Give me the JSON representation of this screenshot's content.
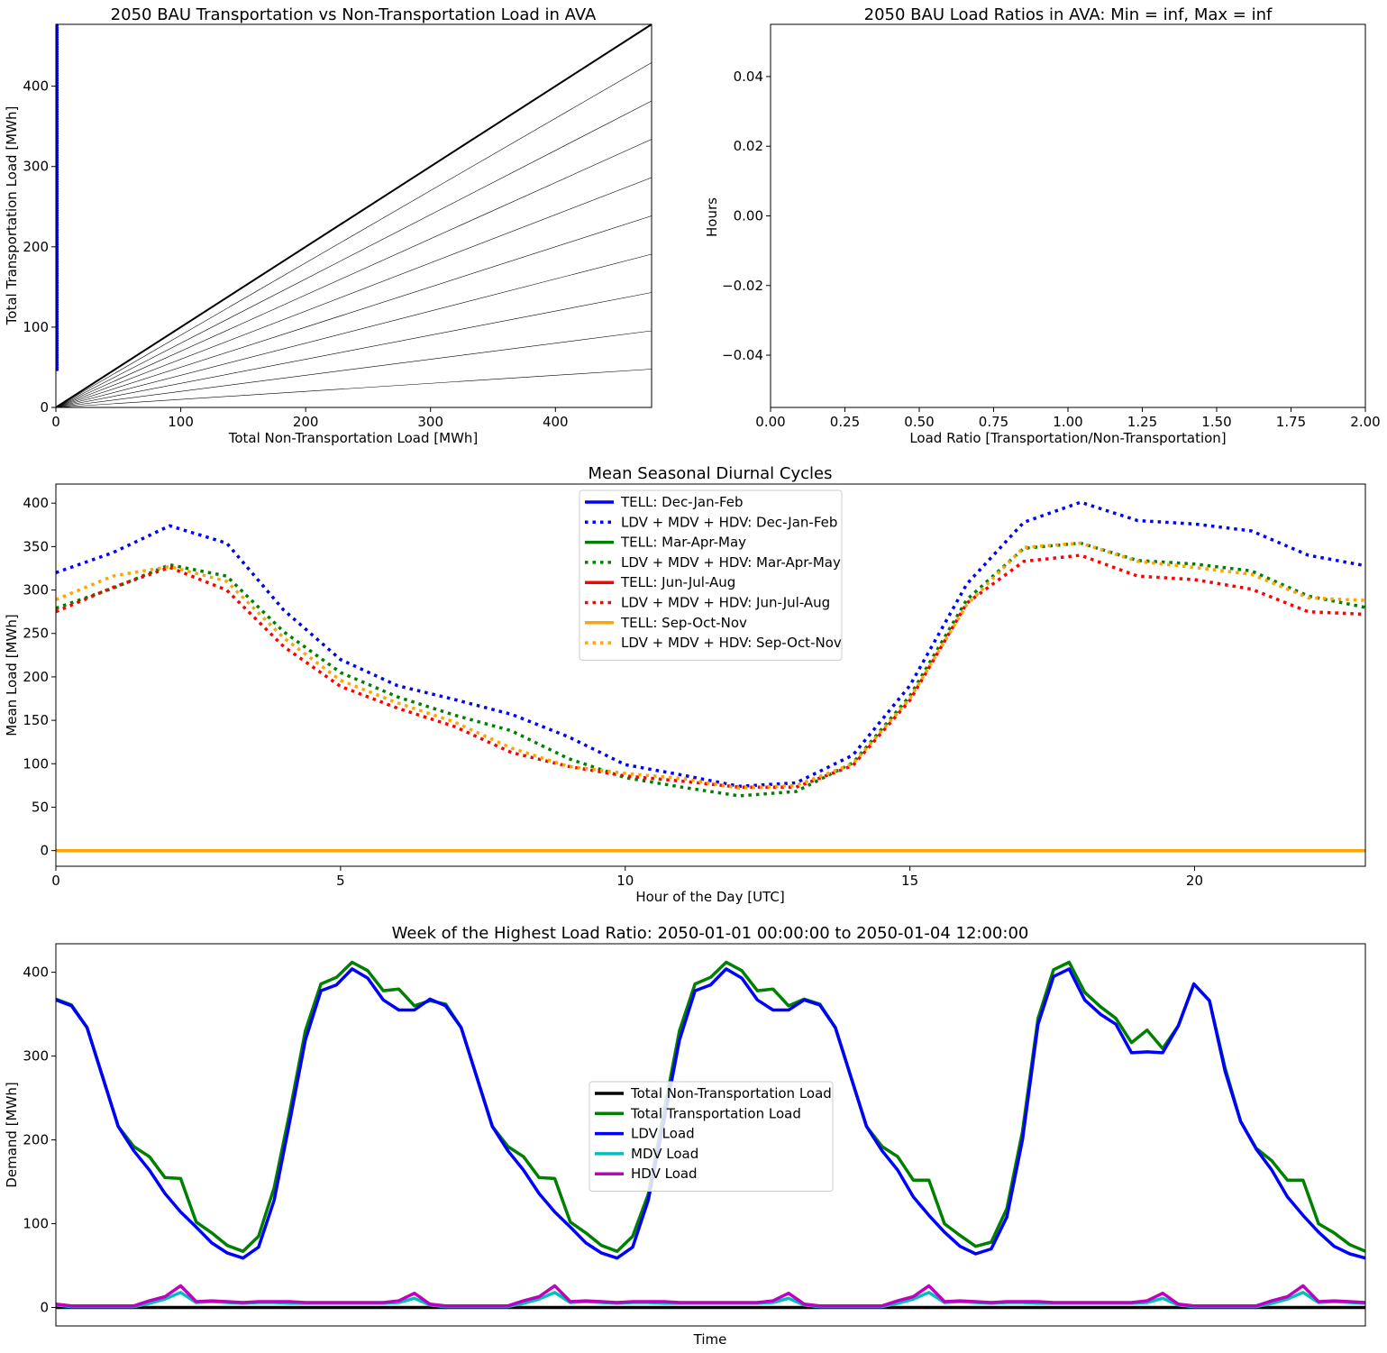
{
  "chart_data": [
    {
      "type": "scatter",
      "title": "2050 BAU Transportation vs Non-Transportation Load in AVA",
      "xlabel": "Total Non-Transportation Load [MWh]",
      "ylabel": "Total Transportation Load [MWh]",
      "xlim": [
        0,
        477
      ],
      "ylim": [
        0,
        477
      ],
      "xticks": [
        0,
        100,
        200,
        300,
        400
      ],
      "yticks": [
        0,
        100,
        200,
        300,
        400
      ],
      "scatter_color": "#0000ff",
      "scatter_x": 0,
      "scatter_y_range": [
        47,
        477
      ],
      "reference_line_slopes": [
        1.0,
        0.9,
        0.8,
        0.7,
        0.6,
        0.5,
        0.4,
        0.3,
        0.2,
        0.1
      ],
      "grid": false
    },
    {
      "type": "bar",
      "title": "2050 BAU Load Ratios in AVA: Min = inf, Max = inf",
      "xlabel": "Load Ratio [Transportation/Non-Transportation]",
      "ylabel": "Hours",
      "xlim": [
        0,
        2
      ],
      "ylim": [
        -0.055,
        0.055
      ],
      "xticks": [
        "0.00",
        "0.25",
        "0.50",
        "0.75",
        "1.00",
        "1.25",
        "1.50",
        "1.75",
        "2.00"
      ],
      "yticks": [
        "0.04",
        "0.02",
        "0.00",
        "−0.02",
        "−0.04"
      ],
      "values": [],
      "grid": false
    },
    {
      "type": "line",
      "title": "Mean Seasonal Diurnal Cycles",
      "xlabel": "Hour of the Day [UTC]",
      "ylabel": "Mean Load [MWh]",
      "xlim": [
        0,
        23
      ],
      "ylim": [
        -18,
        422
      ],
      "xticks": [
        0,
        5,
        10,
        15,
        20
      ],
      "yticks": [
        0,
        50,
        100,
        150,
        200,
        250,
        300,
        350,
        400
      ],
      "legend_position": "upper-center",
      "x": [
        0,
        1,
        2,
        3,
        4,
        5,
        6,
        7,
        8,
        9,
        10,
        11,
        12,
        13,
        14,
        15,
        16,
        17,
        18,
        19,
        20,
        21,
        22,
        23
      ],
      "series": [
        {
          "name": "TELL: Dec-Jan-Feb",
          "color": "#0000ff",
          "dash": "solid",
          "values": [
            0,
            0,
            0,
            0,
            0,
            0,
            0,
            0,
            0,
            0,
            0,
            0,
            0,
            0,
            0,
            0,
            0,
            0,
            0,
            0,
            0,
            0,
            0,
            0
          ]
        },
        {
          "name": "LDV + MDV + HDV: Dec-Jan-Feb",
          "color": "#0000ff",
          "dash": "dotted",
          "values": [
            320,
            343,
            374,
            354,
            277,
            220,
            190,
            174,
            157,
            131,
            99,
            87,
            74,
            78,
            110,
            190,
            307,
            378,
            401,
            380,
            376,
            368,
            340,
            328
          ]
        },
        {
          "name": "TELL: Mar-Apr-May",
          "color": "#008000",
          "dash": "solid",
          "values": [
            0,
            0,
            0,
            0,
            0,
            0,
            0,
            0,
            0,
            0,
            0,
            0,
            0,
            0,
            0,
            0,
            0,
            0,
            0,
            0,
            0,
            0,
            0,
            0
          ]
        },
        {
          "name": "LDV + MDV + HDV: Mar-Apr-May",
          "color": "#008000",
          "dash": "dotted",
          "values": [
            279,
            302,
            329,
            316,
            252,
            205,
            177,
            156,
            138,
            106,
            84,
            73,
            63,
            68,
            101,
            178,
            289,
            348,
            354,
            334,
            330,
            322,
            293,
            280
          ]
        },
        {
          "name": "TELL: Jun-Jul-Aug",
          "color": "#ff0000",
          "dash": "solid",
          "values": [
            0,
            0,
            0,
            0,
            0,
            0,
            0,
            0,
            0,
            0,
            0,
            0,
            0,
            0,
            0,
            0,
            0,
            0,
            0,
            0,
            0,
            0,
            0,
            0
          ]
        },
        {
          "name": "LDV + MDV + HDV: Jun-Jul-Aug",
          "color": "#ff0000",
          "dash": "dotted",
          "values": [
            275,
            303,
            326,
            300,
            235,
            189,
            164,
            143,
            113,
            97,
            86,
            80,
            73,
            73,
            98,
            173,
            285,
            333,
            340,
            316,
            312,
            301,
            275,
            272
          ]
        },
        {
          "name": "TELL: Sep-Oct-Nov",
          "color": "#ffa500",
          "dash": "solid",
          "values": [
            0,
            0,
            0,
            0,
            0,
            0,
            0,
            0,
            0,
            0,
            0,
            0,
            0,
            0,
            0,
            0,
            0,
            0,
            0,
            0,
            0,
            0,
            0,
            0
          ]
        },
        {
          "name": "LDV + MDV + HDV: Sep-Oct-Nov",
          "color": "#ffa500",
          "dash": "dotted",
          "values": [
            289,
            316,
            327,
            310,
            245,
            196,
            170,
            148,
            118,
            97,
            89,
            83,
            72,
            75,
            100,
            175,
            283,
            349,
            354,
            333,
            326,
            318,
            291,
            288
          ]
        }
      ],
      "grid": false
    },
    {
      "type": "line",
      "title": "Week of the Highest Load Ratio: 2050-01-01 00:00:00 to 2050-01-04 12:00:00",
      "xlabel": "Time",
      "ylabel": "Demand [MWh]",
      "xlim": [
        0,
        84
      ],
      "ylim": [
        -22,
        434
      ],
      "yticks": [
        0,
        100,
        200,
        300,
        400
      ],
      "legend_position": "center",
      "x": [
        0,
        1,
        2,
        3,
        4,
        5,
        6,
        7,
        8,
        9,
        10,
        11,
        12,
        13,
        14,
        15,
        16,
        17,
        18,
        19,
        20,
        21,
        22,
        23,
        24,
        25,
        26,
        27,
        28,
        29,
        30,
        31,
        32,
        33,
        34,
        35,
        36,
        37,
        38,
        39,
        40,
        41,
        42,
        43,
        44,
        45,
        46,
        47,
        48,
        49,
        50,
        51,
        52,
        53,
        54,
        55,
        56,
        57,
        58,
        59,
        60,
        61,
        62,
        63,
        64,
        65,
        66,
        67,
        68,
        69,
        70,
        71,
        72,
        73,
        74,
        75,
        76,
        77,
        78,
        79,
        80,
        81,
        82,
        83,
        84
      ],
      "series": [
        {
          "name": "Total Non-Transportation Load",
          "color": "#000000",
          "values": [
            0,
            0,
            0,
            0,
            0,
            0,
            0,
            0,
            0,
            0,
            0,
            0,
            0,
            0,
            0,
            0,
            0,
            0,
            0,
            0,
            0,
            0,
            0,
            0,
            0,
            0,
            0,
            0,
            0,
            0,
            0,
            0,
            0,
            0,
            0,
            0,
            0,
            0,
            0,
            0,
            0,
            0,
            0,
            0,
            0,
            0,
            0,
            0,
            0,
            0,
            0,
            0,
            0,
            0,
            0,
            0,
            0,
            0,
            0,
            0,
            0,
            0,
            0,
            0,
            0,
            0,
            0,
            0,
            0,
            0,
            0,
            0,
            0,
            0,
            0,
            0,
            0,
            0,
            0,
            0,
            0,
            0,
            0,
            0,
            0
          ]
        },
        {
          "name": "Total Transportation Load",
          "color": "#008000",
          "values": [
            368,
            361,
            334,
            275,
            216,
            192,
            180,
            155,
            154,
            102,
            89,
            74,
            67,
            85,
            143,
            233,
            330,
            386,
            394,
            412,
            402,
            378,
            380,
            360,
            366,
            362,
            334,
            275,
            216,
            192,
            180,
            155,
            154,
            102,
            89,
            74,
            67,
            85,
            135,
            233,
            330,
            386,
            394,
            412,
            402,
            378,
            380,
            360,
            368,
            362,
            334,
            275,
            216,
            192,
            180,
            152,
            152,
            100,
            86,
            73,
            78,
            118,
            210,
            345,
            403,
            412,
            376,
            359,
            345,
            316,
            331,
            309,
            336,
            386,
            366,
            286,
            222,
            190,
            175,
            152,
            152,
            100,
            89,
            75,
            67
          ]
        },
        {
          "name": "LDV Load",
          "color": "#0000ff",
          "values": [
            367,
            360,
            334,
            275,
            216,
            187,
            164,
            136,
            114,
            96,
            77,
            65,
            59,
            72,
            128,
            222,
            319,
            378,
            385,
            404,
            393,
            367,
            355,
            355,
            368,
            360,
            334,
            275,
            216,
            187,
            164,
            136,
            114,
            96,
            77,
            65,
            59,
            72,
            128,
            222,
            319,
            378,
            385,
            404,
            393,
            367,
            355,
            355,
            367,
            361,
            334,
            275,
            216,
            187,
            164,
            132,
            110,
            90,
            73,
            64,
            70,
            108,
            200,
            338,
            395,
            404,
            367,
            350,
            338,
            304,
            305,
            304,
            336,
            386,
            366,
            282,
            222,
            189,
            164,
            132,
            110,
            90,
            73,
            64,
            59
          ]
        },
        {
          "name": "MDV Load",
          "color": "#00bfbf",
          "values": [
            3,
            1,
            1,
            1,
            1,
            1,
            5,
            10,
            18,
            6,
            7,
            6,
            5,
            6,
            6,
            5,
            5,
            5,
            5,
            5,
            5,
            5,
            6,
            11,
            3,
            1,
            1,
            1,
            1,
            1,
            5,
            10,
            18,
            6,
            7,
            6,
            5,
            6,
            6,
            5,
            5,
            5,
            5,
            5,
            5,
            5,
            6,
            11,
            3,
            1,
            1,
            1,
            1,
            1,
            5,
            10,
            18,
            6,
            7,
            6,
            5,
            6,
            6,
            5,
            5,
            5,
            5,
            5,
            5,
            5,
            6,
            11,
            3,
            1,
            1,
            1,
            1,
            1,
            5,
            10,
            18,
            6,
            7,
            6,
            5
          ]
        },
        {
          "name": "HDV Load",
          "color": "#bf00bf",
          "values": [
            4,
            2,
            2,
            2,
            2,
            2,
            8,
            13,
            26,
            7,
            8,
            7,
            6,
            7,
            7,
            7,
            6,
            6,
            6,
            6,
            6,
            6,
            8,
            17,
            4,
            2,
            2,
            2,
            2,
            2,
            8,
            13,
            26,
            7,
            8,
            7,
            6,
            7,
            7,
            7,
            6,
            6,
            6,
            6,
            6,
            6,
            8,
            17,
            4,
            2,
            2,
            2,
            2,
            2,
            8,
            13,
            26,
            7,
            8,
            7,
            6,
            7,
            7,
            7,
            6,
            6,
            6,
            6,
            6,
            6,
            8,
            17,
            4,
            2,
            2,
            2,
            2,
            2,
            8,
            13,
            26,
            7,
            8,
            7,
            6
          ]
        }
      ],
      "grid": false
    }
  ]
}
